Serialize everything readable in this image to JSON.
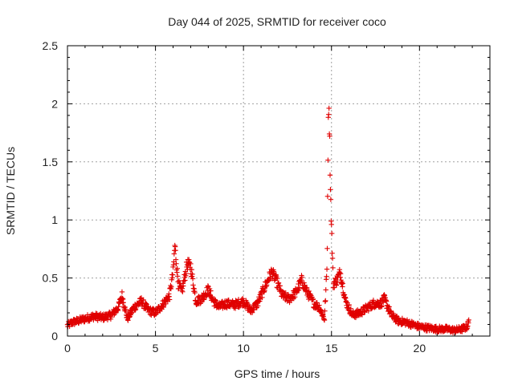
{
  "chart_data": {
    "type": "scatter",
    "title": "Day 044 of 2025, SRMTID for receiver coco",
    "xlabel": "GPS time / hours",
    "ylabel": "SRMTID / TECUs",
    "xlim": [
      0,
      24
    ],
    "ylim": [
      0,
      2.5
    ],
    "xticks": [
      0,
      5,
      10,
      15,
      20
    ],
    "xtick_labels": [
      "0",
      "5",
      "10",
      "15",
      "20"
    ],
    "yticks": [
      0,
      0.5,
      1,
      1.5,
      2,
      2.5
    ],
    "ytick_labels": [
      "0",
      "0.5",
      "1",
      "1.5",
      "2",
      "2.5"
    ],
    "grid": true,
    "marker": "+",
    "series": [
      {
        "name": "SRMTID",
        "color": "#e00000",
        "profile_x": [
          0,
          0.3,
          0.6,
          1.0,
          1.5,
          2.0,
          2.5,
          2.9,
          3.1,
          3.4,
          3.8,
          4.2,
          4.6,
          5.0,
          5.4,
          5.8,
          6.0,
          6.1,
          6.3,
          6.5,
          6.8,
          7.0,
          7.3,
          7.6,
          8.0,
          8.3,
          8.6,
          9.0,
          9.5,
          10.0,
          10.4,
          10.8,
          11.2,
          11.6,
          11.8,
          12.2,
          12.6,
          13.0,
          13.3,
          13.6,
          14.0,
          14.3,
          14.6,
          14.75,
          14.8,
          14.85,
          14.95,
          15.1,
          15.3,
          15.5,
          15.8,
          16.2,
          16.6,
          17.0,
          17.4,
          17.8,
          18.0,
          18.4,
          18.8,
          19.2,
          19.6,
          20.0,
          20.5,
          21.0,
          21.5,
          22.0,
          22.4,
          22.7,
          22.8
        ],
        "profile_y": [
          0.09,
          0.12,
          0.13,
          0.15,
          0.17,
          0.16,
          0.18,
          0.25,
          0.35,
          0.15,
          0.25,
          0.3,
          0.22,
          0.2,
          0.27,
          0.35,
          0.55,
          0.78,
          0.45,
          0.38,
          0.62,
          0.6,
          0.3,
          0.32,
          0.4,
          0.3,
          0.25,
          0.28,
          0.27,
          0.3,
          0.22,
          0.28,
          0.42,
          0.55,
          0.5,
          0.35,
          0.32,
          0.38,
          0.48,
          0.38,
          0.28,
          0.25,
          0.15,
          0.6,
          1.6,
          2.1,
          1.2,
          0.45,
          0.48,
          0.55,
          0.3,
          0.18,
          0.2,
          0.24,
          0.28,
          0.28,
          0.32,
          0.18,
          0.13,
          0.12,
          0.1,
          0.08,
          0.07,
          0.06,
          0.06,
          0.05,
          0.06,
          0.08,
          0.12
        ],
        "spread": 0.07,
        "sample_step_hours": 0.02
      }
    ]
  }
}
